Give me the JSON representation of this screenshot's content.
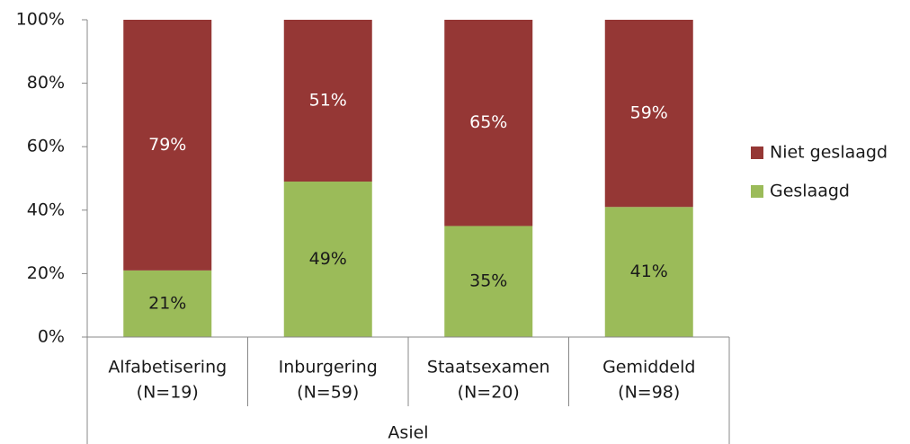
{
  "chart_data": {
    "type": "stacked_bar",
    "categories": [
      [
        "Alfabetisering",
        "(N=19)"
      ],
      [
        "Inburgering",
        "(N=59)"
      ],
      [
        "Staatsexamen",
        "(N=20)"
      ],
      [
        "Gemiddeld",
        "(N=98)"
      ]
    ],
    "group": "Asiel",
    "series": [
      {
        "name": "Geslaagd",
        "color": "#9bbb59",
        "label_color": "#1a1a1a",
        "values": [
          21,
          49,
          35,
          41
        ],
        "value_labels": [
          "21%",
          "49%",
          "35%",
          "41%"
        ]
      },
      {
        "name": "Niet geslaagd",
        "color": "#953735",
        "label_color": "#ffffff",
        "values": [
          79,
          51,
          65,
          59
        ],
        "value_labels": [
          "79%",
          "51%",
          "65%",
          "59%"
        ]
      }
    ],
    "ylim": [
      0,
      100
    ],
    "yticks": [
      {
        "value": 0,
        "label": "0%"
      },
      {
        "value": 20,
        "label": "20%"
      },
      {
        "value": 40,
        "label": "40%"
      },
      {
        "value": 60,
        "label": "60%"
      },
      {
        "value": 80,
        "label": "80%"
      },
      {
        "value": 100,
        "label": "100%"
      }
    ],
    "legend": "right"
  }
}
